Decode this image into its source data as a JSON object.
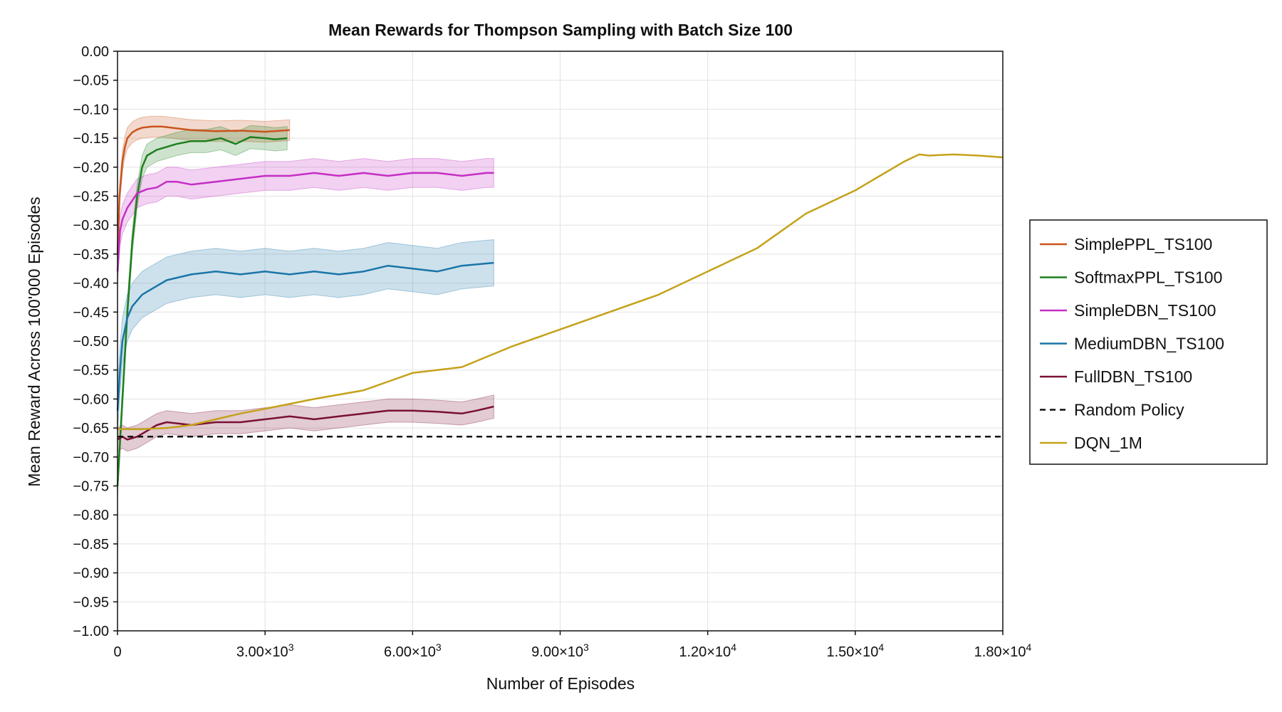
{
  "chart_data": {
    "type": "line",
    "title": "Mean Rewards for Thompson Sampling with Batch Size 100",
    "xlabel": "Number of Episodes",
    "ylabel": "Mean Reward Across 100'000 Episodes",
    "xlim": [
      0,
      18000
    ],
    "ylim": [
      -1.0,
      0.0
    ],
    "grid": true,
    "legend_position": "right",
    "x_ticks": [
      {
        "value": 0,
        "base": "0",
        "exp": ""
      },
      {
        "value": 3000,
        "base": "3.00×10",
        "exp": "3"
      },
      {
        "value": 6000,
        "base": "6.00×10",
        "exp": "3"
      },
      {
        "value": 9000,
        "base": "9.00×10",
        "exp": "3"
      },
      {
        "value": 12000,
        "base": "1.20×10",
        "exp": "4"
      },
      {
        "value": 15000,
        "base": "1.50×10",
        "exp": "4"
      },
      {
        "value": 18000,
        "base": "1.80×10",
        "exp": "4"
      }
    ],
    "y_ticks": [
      {
        "value": 0.0,
        "label": "0.00"
      },
      {
        "value": -0.05,
        "label": "−0.05"
      },
      {
        "value": -0.1,
        "label": "−0.10"
      },
      {
        "value": -0.15,
        "label": "−0.15"
      },
      {
        "value": -0.2,
        "label": "−0.20"
      },
      {
        "value": -0.25,
        "label": "−0.25"
      },
      {
        "value": -0.3,
        "label": "−0.30"
      },
      {
        "value": -0.35,
        "label": "−0.35"
      },
      {
        "value": -0.4,
        "label": "−0.40"
      },
      {
        "value": -0.45,
        "label": "−0.45"
      },
      {
        "value": -0.5,
        "label": "−0.50"
      },
      {
        "value": -0.55,
        "label": "−0.55"
      },
      {
        "value": -0.6,
        "label": "−0.60"
      },
      {
        "value": -0.65,
        "label": "−0.65"
      },
      {
        "value": -0.7,
        "label": "−0.70"
      },
      {
        "value": -0.75,
        "label": "−0.75"
      },
      {
        "value": -0.8,
        "label": "−0.80"
      },
      {
        "value": -0.85,
        "label": "−0.85"
      },
      {
        "value": -0.9,
        "label": "−0.90"
      },
      {
        "value": -0.95,
        "label": "−0.95"
      },
      {
        "value": -1.0,
        "label": "−1.00"
      }
    ],
    "series": [
      {
        "name": "SimplePPL_TS100",
        "color": "#c9541c",
        "style": "solid",
        "band_halfwidth": 0.018,
        "x": [
          0,
          40,
          100,
          150,
          200,
          300,
          400,
          500,
          700,
          900,
          1200,
          1500,
          2000,
          2500,
          3000,
          3500
        ],
        "y": [
          -0.35,
          -0.25,
          -0.19,
          -0.165,
          -0.15,
          -0.14,
          -0.135,
          -0.132,
          -0.13,
          -0.13,
          -0.133,
          -0.136,
          -0.138,
          -0.137,
          -0.139,
          -0.136
        ]
      },
      {
        "name": "SoftmaxPPL_TS100",
        "color": "#1f7f1f",
        "style": "solid",
        "band_halfwidth": 0.02,
        "x": [
          0,
          100,
          200,
          300,
          400,
          500,
          600,
          800,
          1000,
          1200,
          1500,
          1800,
          2100,
          2400,
          2700,
          3000,
          3200,
          3450
        ],
        "y": [
          -0.75,
          -0.6,
          -0.45,
          -0.33,
          -0.25,
          -0.2,
          -0.18,
          -0.17,
          -0.165,
          -0.16,
          -0.155,
          -0.155,
          -0.15,
          -0.16,
          -0.148,
          -0.15,
          -0.152,
          -0.15
        ]
      },
      {
        "name": "SimpleDBN_TS100",
        "color": "#c42fc4",
        "style": "solid",
        "band_halfwidth": 0.025,
        "x": [
          0,
          50,
          100,
          200,
          400,
          600,
          800,
          1000,
          1200,
          1500,
          2000,
          2500,
          3000,
          3500,
          4000,
          4500,
          5000,
          5500,
          6000,
          6500,
          7000,
          7500,
          7650
        ],
        "y": [
          -0.38,
          -0.31,
          -0.29,
          -0.27,
          -0.245,
          -0.238,
          -0.235,
          -0.225,
          -0.225,
          -0.23,
          -0.225,
          -0.22,
          -0.215,
          -0.215,
          -0.21,
          -0.215,
          -0.21,
          -0.215,
          -0.21,
          -0.21,
          -0.215,
          -0.21,
          -0.21
        ]
      },
      {
        "name": "MediumDBN_TS100",
        "color": "#1a75a8",
        "style": "solid",
        "band_halfwidth": 0.04,
        "x": [
          0,
          50,
          100,
          200,
          300,
          500,
          700,
          1000,
          1500,
          2000,
          2500,
          3000,
          3500,
          4000,
          4500,
          5000,
          5500,
          6000,
          6500,
          7000,
          7650
        ],
        "y": [
          -0.62,
          -0.55,
          -0.5,
          -0.46,
          -0.44,
          -0.42,
          -0.41,
          -0.395,
          -0.385,
          -0.38,
          -0.385,
          -0.38,
          -0.385,
          -0.38,
          -0.385,
          -0.38,
          -0.37,
          -0.375,
          -0.38,
          -0.37,
          -0.365
        ]
      },
      {
        "name": "FullDBN_TS100",
        "color": "#7a1035",
        "style": "solid",
        "band_halfwidth": 0.02,
        "x": [
          0,
          100,
          200,
          400,
          600,
          800,
          1000,
          1500,
          2000,
          2500,
          3000,
          3500,
          4000,
          4500,
          5000,
          5500,
          6000,
          6500,
          7000,
          7300,
          7650
        ],
        "y": [
          -0.67,
          -0.665,
          -0.67,
          -0.665,
          -0.655,
          -0.645,
          -0.64,
          -0.645,
          -0.64,
          -0.64,
          -0.635,
          -0.63,
          -0.635,
          -0.63,
          -0.625,
          -0.62,
          -0.62,
          -0.622,
          -0.625,
          -0.62,
          -0.613
        ]
      },
      {
        "name": "Random Policy",
        "color": "#111111",
        "style": "dashed",
        "band_halfwidth": 0,
        "x": [
          0,
          18000
        ],
        "y": [
          -0.665,
          -0.665
        ]
      },
      {
        "name": "DQN_1M",
        "color": "#c4a21a",
        "style": "solid",
        "band_halfwidth": 0,
        "x": [
          0,
          500,
          1000,
          1500,
          2000,
          2500,
          3000,
          4000,
          5000,
          5500,
          6000,
          7000,
          8000,
          9000,
          10000,
          11000,
          12000,
          13000,
          14000,
          15000,
          15500,
          16000,
          16300,
          16500,
          17000,
          17500,
          18000
        ],
        "y": [
          -0.652,
          -0.652,
          -0.65,
          -0.645,
          -0.635,
          -0.625,
          -0.617,
          -0.6,
          -0.585,
          -0.57,
          -0.555,
          -0.545,
          -0.51,
          -0.48,
          -0.45,
          -0.42,
          -0.38,
          -0.34,
          -0.28,
          -0.24,
          -0.215,
          -0.19,
          -0.178,
          -0.18,
          -0.178,
          -0.18,
          -0.183
        ]
      }
    ]
  }
}
